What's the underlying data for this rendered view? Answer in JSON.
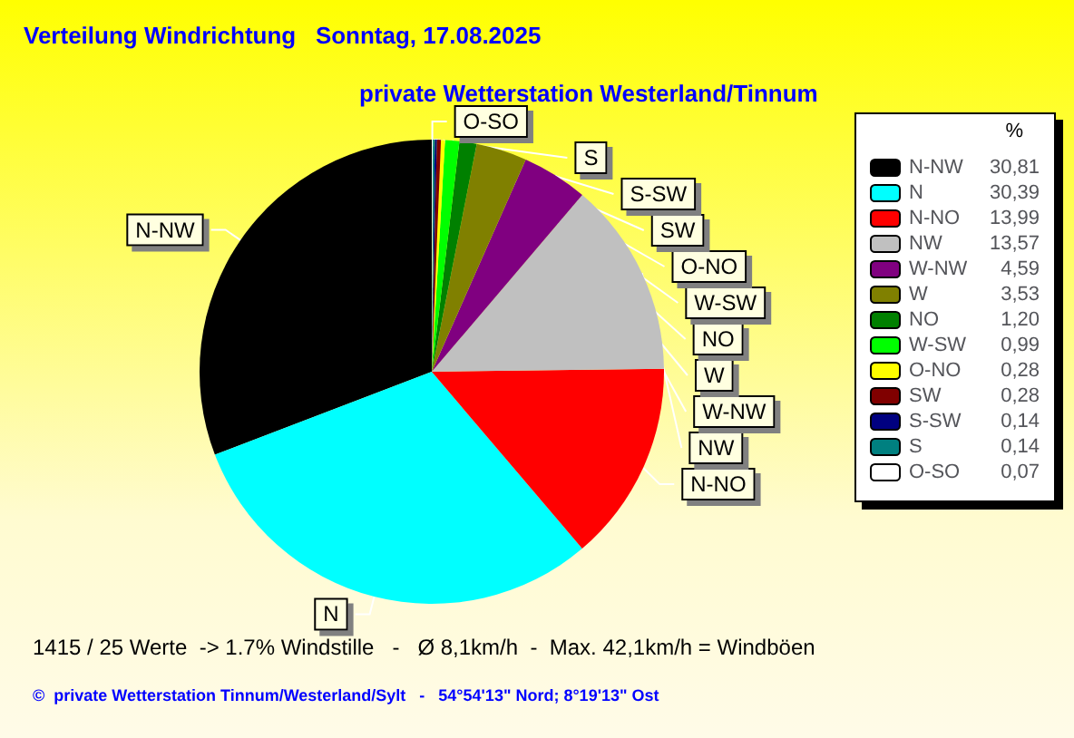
{
  "chart_data": {
    "type": "pie",
    "title": "Verteilung Windrichtung   Sonntag, 17.08.2025",
    "subtitle": "private Wetterstation Westerland/Tinnum",
    "legend_title": "%",
    "categories": [
      "N-NW",
      "N",
      "N-NO",
      "NW",
      "W-NW",
      "W",
      "NO",
      "W-SW",
      "O-NO",
      "SW",
      "S-SW",
      "S",
      "O-SO"
    ],
    "values": [
      30.81,
      30.39,
      13.99,
      13.57,
      4.59,
      3.53,
      1.2,
      0.99,
      0.28,
      0.28,
      0.14,
      0.14,
      0.07
    ],
    "value_labels": [
      "30,81",
      "30,39",
      "13,99",
      "13,57",
      "4,59",
      "3,53",
      "1,20",
      "0,99",
      "0,28",
      "0,28",
      "0,14",
      "0,14",
      "0,07"
    ],
    "colors": [
      "#000000",
      "#00ffff",
      "#ff0000",
      "#c0c0c0",
      "#800080",
      "#808000",
      "#008000",
      "#00ff00",
      "#ffff00",
      "#800000",
      "#000080",
      "#008080",
      "#ffffff"
    ],
    "legend": "right",
    "annotations": [
      "1415 / 25 Werte  -> 1.7% Windstille   -   Ø 8,1km/h  -  Max. 42,1km/h = Windböen",
      "©  private Wetterstation Tinnum/Westerland/Sylt   -   54°54'13\" Nord; 8°19'13\" Ost"
    ]
  }
}
